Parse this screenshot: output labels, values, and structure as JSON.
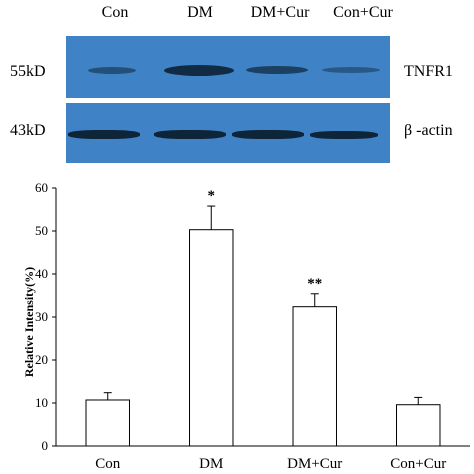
{
  "blot": {
    "lanes": [
      "Con",
      "DM",
      "DM+Cur",
      "Con+Cur"
    ],
    "rows": [
      {
        "mw": "55kD",
        "protein": "TNFR1"
      },
      {
        "mw": "43kD",
        "protein": "β -actin"
      }
    ],
    "colors": {
      "membrane": "#3f83c6",
      "band": "#0e2438"
    }
  },
  "chart_data": {
    "type": "bar",
    "categories": [
      "Con",
      "DM",
      "DM+Cur",
      "Con+Cur"
    ],
    "values": [
      10.7,
      50.3,
      32.4,
      9.6
    ],
    "errors": [
      1.7,
      5.5,
      3.0,
      1.7
    ],
    "significance": [
      "",
      "*",
      "**",
      ""
    ],
    "ylabel": "Relative Intensity(%)",
    "ylim": [
      0,
      60
    ],
    "yticks": [
      "0",
      "10",
      "20",
      "30",
      "40",
      "50",
      "60"
    ],
    "grid": false,
    "bar_fill": "#ffffff",
    "bar_stroke": "#000000"
  }
}
